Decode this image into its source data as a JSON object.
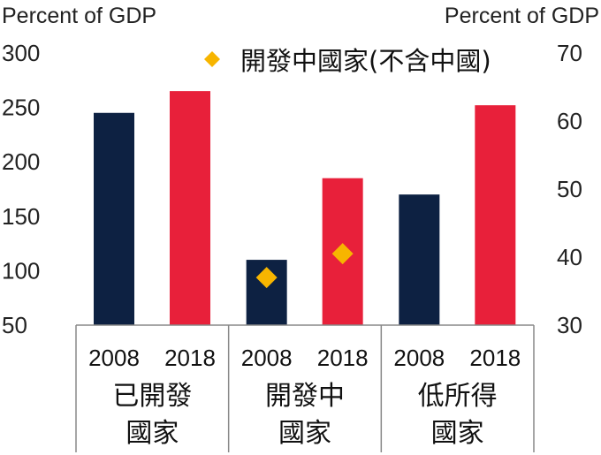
{
  "chart_data": {
    "type": "bar",
    "left_axis_title": "Percent of GDP",
    "right_axis_title": "Percent of GDP",
    "left_ylim": [
      50,
      300
    ],
    "left_ticks": [
      50,
      100,
      150,
      200,
      250,
      300
    ],
    "right_ylim": [
      30,
      70
    ],
    "right_ticks": [
      30,
      40,
      50,
      60,
      70
    ],
    "groups": [
      {
        "label_lines": [
          "已開發",
          "國家"
        ],
        "bars": [
          {
            "year": "2008",
            "value": 245,
            "color": "#0d2142"
          },
          {
            "year": "2018",
            "value": 265,
            "color": "#e8203a"
          }
        ]
      },
      {
        "label_lines": [
          "開發中",
          "國家"
        ],
        "bars": [
          {
            "year": "2008",
            "value": 110,
            "color": "#0d2142"
          },
          {
            "year": "2018",
            "value": 185,
            "color": "#e8203a"
          }
        ]
      },
      {
        "label_lines": [
          "低所得",
          "國家"
        ],
        "bars": [
          {
            "year": "2008",
            "value": 170,
            "color": "#0d2142"
          },
          {
            "year": "2018",
            "value": 252,
            "color": "#e8203a"
          }
        ]
      }
    ],
    "series": [
      {
        "name": "開發中國家(不含中國)",
        "marker": "diamond",
        "color": "#f7b500",
        "axis": "right",
        "points": [
          {
            "group": 1,
            "year": "2008",
            "value": 37
          },
          {
            "group": 1,
            "year": "2018",
            "value": 40.5
          }
        ]
      }
    ],
    "legend_position": "top-right"
  }
}
